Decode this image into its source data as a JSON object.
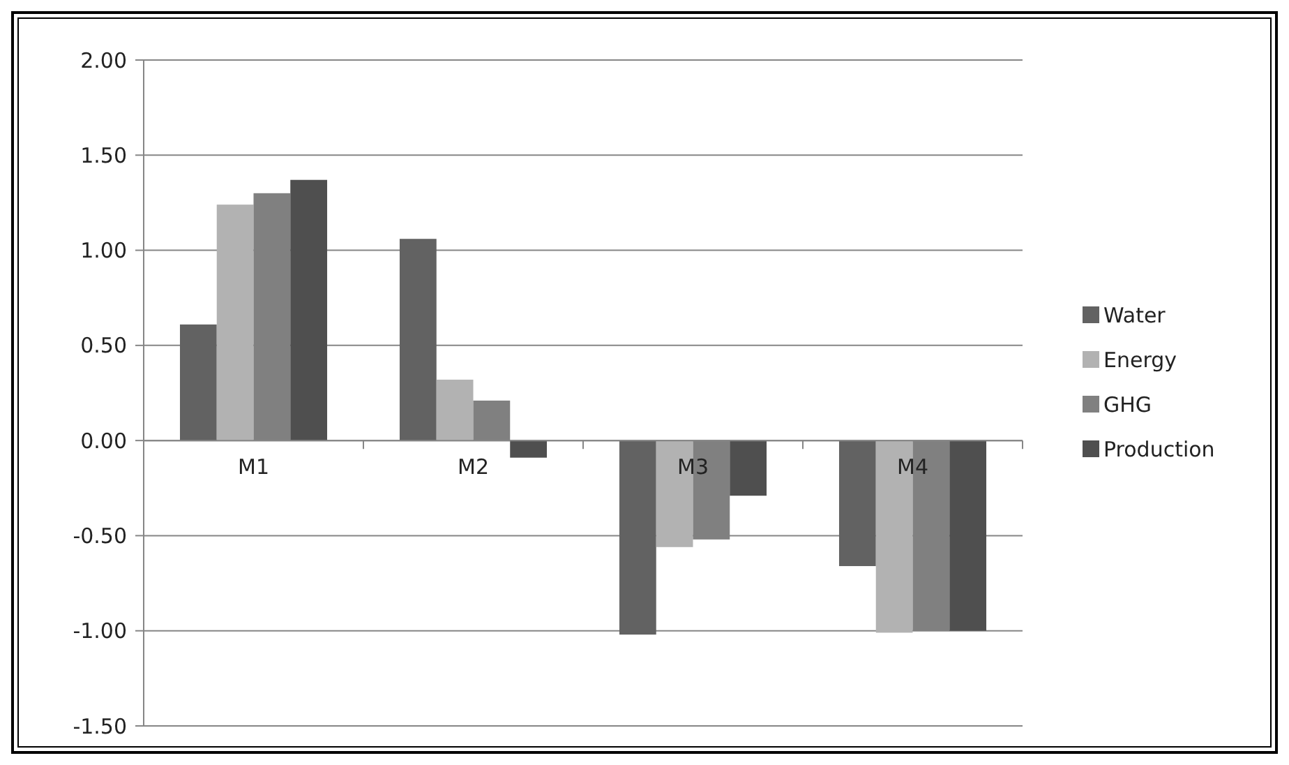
{
  "chart_data": {
    "type": "bar",
    "categories": [
      "M1",
      "M2",
      "M3",
      "M4"
    ],
    "series": [
      {
        "name": "Water",
        "color": "#626262",
        "values": [
          0.61,
          1.06,
          -1.02,
          -0.66
        ]
      },
      {
        "name": "Energy",
        "color": "#b2b2b2",
        "values": [
          1.24,
          0.32,
          -0.56,
          -1.01
        ]
      },
      {
        "name": "GHG",
        "color": "#808080",
        "values": [
          1.3,
          0.21,
          -0.52,
          -1.0
        ]
      },
      {
        "name": "Production",
        "color": "#4f4f4f",
        "values": [
          1.37,
          -0.09,
          -0.29,
          -1.0
        ]
      }
    ],
    "ylim": [
      -1.5,
      2
    ],
    "yticks": [
      {
        "value": -1.5,
        "label": "-1.50"
      },
      {
        "value": -1,
        "label": "-1.00"
      },
      {
        "value": -0.5,
        "label": "-0.50"
      },
      {
        "value": 0,
        "label": "0.00"
      },
      {
        "value": 0.5,
        "label": "0.50"
      },
      {
        "value": 1,
        "label": "1.00"
      },
      {
        "value": 1.5,
        "label": "1.50"
      },
      {
        "value": 2,
        "label": "2.00"
      }
    ],
    "grid": "y",
    "legend": "right"
  }
}
